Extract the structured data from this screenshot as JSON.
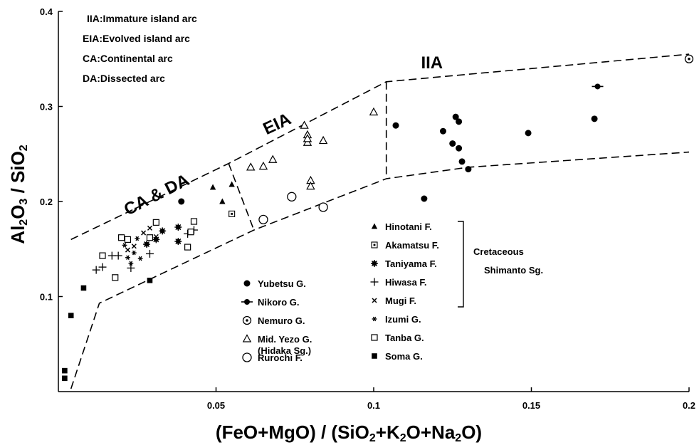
{
  "chart_data": {
    "type": "scatter",
    "title": "",
    "xlabel": "(FeO+MgO) / (SiO2+K2O+Na2O)",
    "ylabel": "Al2O3 / SiO2",
    "xlim": [
      0,
      0.2
    ],
    "ylim": [
      0,
      0.4
    ],
    "x_ticks": [
      {
        "value": 0.05,
        "label": "0.05"
      },
      {
        "value": 0.1,
        "label": "0.1"
      },
      {
        "value": 0.15,
        "label": "0.15"
      },
      {
        "value": 0.2,
        "label": "0.2"
      }
    ],
    "y_ticks": [
      {
        "value": 0.1,
        "label": "0.1"
      },
      {
        "value": 0.2,
        "label": "0.2"
      },
      {
        "value": 0.3,
        "label": "0.3"
      },
      {
        "value": 0.4,
        "label": "0.4"
      }
    ],
    "abbreviations": [
      "IIA:Immature island arc",
      "EIA:Evolved island arc",
      "CA:Continental arc",
      "DA:Dissected arc"
    ],
    "region_labels": [
      {
        "text": "IIA",
        "x": 0.115,
        "y": 0.34,
        "rotate": 0
      },
      {
        "text": "EIA",
        "x": 0.066,
        "y": 0.27,
        "rotate": -25
      },
      {
        "text": "CA & DA",
        "x": 0.022,
        "y": 0.185,
        "rotate": -27
      }
    ],
    "boundaries": [
      {
        "dashed": true,
        "points": [
          [
            0.004,
            0.003
          ],
          [
            0.013,
            0.093
          ],
          [
            0.062,
            0.17
          ],
          [
            0.104,
            0.224
          ],
          [
            0.13,
            0.236
          ],
          [
            0.2,
            0.252
          ]
        ]
      },
      {
        "dashed": true,
        "points": [
          [
            0.004,
            0.16
          ],
          [
            0.054,
            0.24
          ],
          [
            0.104,
            0.326
          ],
          [
            0.2,
            0.355
          ]
        ]
      },
      {
        "dashed": true,
        "points": [
          [
            0.054,
            0.24
          ],
          [
            0.062,
            0.17
          ]
        ]
      },
      {
        "dashed": true,
        "points": [
          [
            0.104,
            0.326
          ],
          [
            0.104,
            0.224
          ]
        ]
      }
    ],
    "legend_groups": [
      {
        "text": "Cretaceous"
      },
      {
        "text": "Shimanto Sg."
      }
    ],
    "series": [
      {
        "name": "Yubetsu G.",
        "marker": "filled-circle",
        "points": [
          [
            0.039,
            0.2
          ],
          [
            0.107,
            0.28
          ],
          [
            0.116,
            0.203
          ],
          [
            0.122,
            0.274
          ],
          [
            0.125,
            0.261
          ],
          [
            0.126,
            0.289
          ],
          [
            0.127,
            0.284
          ],
          [
            0.127,
            0.256
          ],
          [
            0.128,
            0.242
          ],
          [
            0.13,
            0.234
          ],
          [
            0.149,
            0.272
          ],
          [
            0.17,
            0.287
          ]
        ]
      },
      {
        "name": "Nikoro G.",
        "marker": "filled-circle-dash",
        "points": [
          [
            0.171,
            0.321
          ]
        ]
      },
      {
        "name": "Nemuro G.",
        "marker": "bullseye",
        "points": [
          [
            0.2,
            0.35
          ]
        ]
      },
      {
        "name": "Mid. Yezo G.",
        "marker": "open-triangle",
        "points": [
          [
            0.061,
            0.236
          ],
          [
            0.065,
            0.237
          ],
          [
            0.068,
            0.244
          ],
          [
            0.078,
            0.28
          ],
          [
            0.079,
            0.27
          ],
          [
            0.079,
            0.262
          ],
          [
            0.079,
            0.266
          ],
          [
            0.08,
            0.222
          ],
          [
            0.08,
            0.216
          ],
          [
            0.084,
            0.264
          ],
          [
            0.1,
            0.294
          ]
        ]
      },
      {
        "name": "Rurochi F.",
        "marker": "open-circle",
        "points": [
          [
            0.065,
            0.181
          ],
          [
            0.074,
            0.205
          ],
          [
            0.084,
            0.194
          ]
        ]
      },
      {
        "name": "Hinotani F.",
        "marker": "filled-triangle",
        "points": [
          [
            0.049,
            0.215
          ],
          [
            0.052,
            0.2
          ],
          [
            0.055,
            0.218
          ]
        ]
      },
      {
        "name": "Akamatsu F.",
        "marker": "boxed-dot",
        "points": [
          [
            0.055,
            0.187
          ]
        ]
      },
      {
        "name": "Taniyama F.",
        "marker": "filled-star",
        "points": [
          [
            0.028,
            0.155
          ],
          [
            0.031,
            0.16
          ],
          [
            0.033,
            0.169
          ],
          [
            0.038,
            0.158
          ],
          [
            0.038,
            0.173
          ]
        ]
      },
      {
        "name": "Hiwasa F.",
        "marker": "plus",
        "points": [
          [
            0.012,
            0.128
          ],
          [
            0.014,
            0.131
          ],
          [
            0.017,
            0.143
          ],
          [
            0.019,
            0.143
          ],
          [
            0.023,
            0.13
          ],
          [
            0.029,
            0.145
          ],
          [
            0.041,
            0.166
          ],
          [
            0.043,
            0.17
          ]
        ]
      },
      {
        "name": "Mugi F.",
        "marker": "x",
        "points": [
          [
            0.022,
            0.149
          ],
          [
            0.024,
            0.153
          ],
          [
            0.027,
            0.167
          ],
          [
            0.029,
            0.172
          ],
          [
            0.031,
            0.163
          ]
        ]
      },
      {
        "name": "Izumi G.",
        "marker": "small-star",
        "points": [
          [
            0.021,
            0.154
          ],
          [
            0.022,
            0.141
          ],
          [
            0.023,
            0.135
          ],
          [
            0.024,
            0.146
          ],
          [
            0.025,
            0.161
          ],
          [
            0.026,
            0.14
          ]
        ]
      },
      {
        "name": "Tanba G.",
        "marker": "open-square",
        "points": [
          [
            0.014,
            0.143
          ],
          [
            0.018,
            0.12
          ],
          [
            0.02,
            0.162
          ],
          [
            0.022,
            0.16
          ],
          [
            0.029,
            0.162
          ],
          [
            0.031,
            0.178
          ],
          [
            0.041,
            0.152
          ],
          [
            0.042,
            0.168
          ],
          [
            0.043,
            0.179
          ]
        ]
      },
      {
        "name": "Soma G.",
        "marker": "filled-square",
        "points": [
          [
            0.002,
            0.022
          ],
          [
            0.002,
            0.014
          ],
          [
            0.004,
            0.08
          ],
          [
            0.008,
            0.109
          ],
          [
            0.029,
            0.117
          ]
        ]
      }
    ],
    "legend_labels": [
      {
        "text": "(Hidaka Sg.)"
      }
    ],
    "grid": false,
    "legend_position": "bottom-center"
  }
}
